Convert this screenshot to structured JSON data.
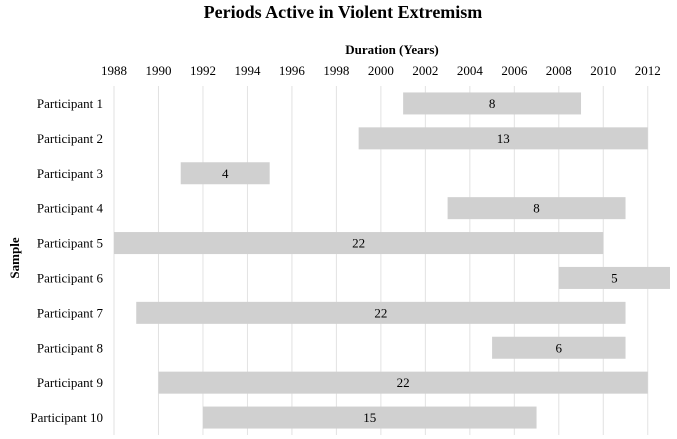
{
  "chart_data": {
    "type": "bar",
    "orientation": "horizontal-floating",
    "title": "Periods Active in Violent Extremism",
    "xlabel": "Duration (Years)",
    "ylabel": "Sample",
    "xlim": [
      1988,
      2013
    ],
    "x_ticks": [
      1988,
      1990,
      1992,
      1994,
      1996,
      1998,
      2000,
      2002,
      2004,
      2006,
      2008,
      2010,
      2012
    ],
    "x_axis_position": "top",
    "grid": "vertical",
    "bar_color": "#d0d0d0",
    "categories": [
      "Participant 1",
      "Participant 2",
      "Participant 3",
      "Participant 4",
      "Participant 5",
      "Participant 6",
      "Participant 7",
      "Participant 8",
      "Participant 9",
      "Participant 10"
    ],
    "starts": [
      2001,
      1999,
      1991,
      2003,
      1988,
      2008,
      1989,
      2005,
      1990,
      1992
    ],
    "ends": [
      2009,
      2012,
      1995,
      2011,
      2010,
      2013,
      2011,
      2011,
      2012,
      2007
    ],
    "values": [
      8,
      13,
      4,
      8,
      22,
      5,
      22,
      6,
      22,
      15
    ]
  }
}
